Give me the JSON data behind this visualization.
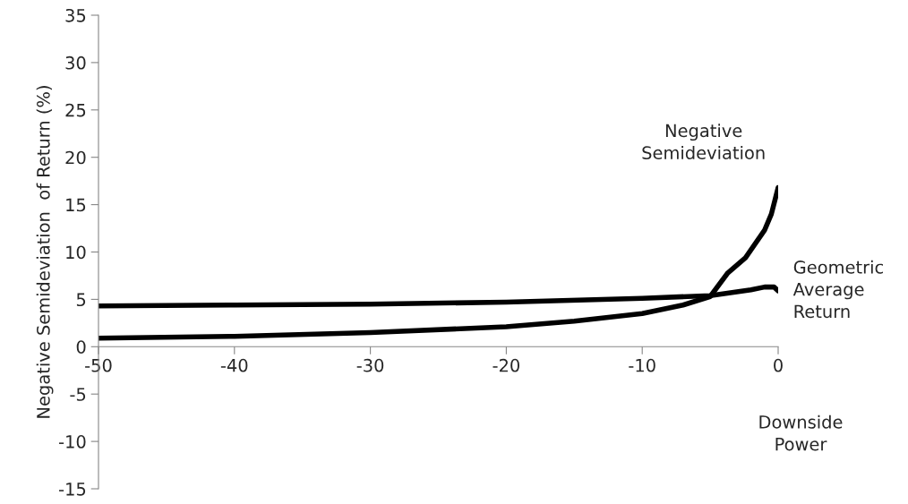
{
  "chart_data": {
    "type": "line",
    "xlabel": "Downside\nPower",
    "ylabel": "Negative Semideviation  of Return (%)",
    "xlim": [
      -50,
      0
    ],
    "xticks": [
      -50,
      -40,
      -30,
      -20,
      -10,
      0
    ],
    "ylim": [
      -15,
      35
    ],
    "yticks": [
      -15,
      -10,
      -5,
      0,
      5,
      10,
      15,
      20,
      25,
      30,
      35
    ],
    "grid": false,
    "legend": false,
    "marker": "none",
    "line_style": "solid",
    "series": [
      {
        "name": "Negative\nSemideviation",
        "color": "#000000",
        "x": [
          -50,
          -40,
          -30,
          -20,
          -15,
          -10,
          -7,
          -5,
          -3.7,
          -2.4,
          -1,
          -0.5,
          0
        ],
        "values": [
          0.9,
          1.1,
          1.5,
          2.1,
          2.7,
          3.5,
          4.4,
          5.3,
          7.8,
          9.4,
          12.3,
          14,
          16.8
        ]
      },
      {
        "name": "Geometric\nAverage\nReturn",
        "color": "#000000",
        "x": [
          -50,
          -40,
          -30,
          -20,
          -10,
          -5,
          -2,
          -1,
          -0.3,
          0
        ],
        "values": [
          4.3,
          4.4,
          4.5,
          4.7,
          5.1,
          5.4,
          6,
          6.3,
          6.3,
          5.9
        ]
      }
    ]
  }
}
